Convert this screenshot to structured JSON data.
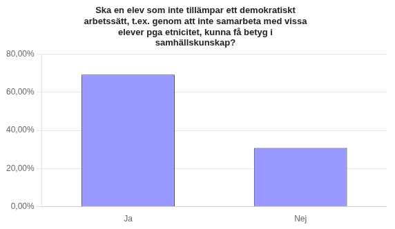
{
  "chart_data": {
    "type": "bar",
    "title": "Ska en elev som inte tillämpar ett demokratiskt\narbetssätt, t.ex. genom att inte samarbeta med vissa\nelever pga etnicitet, kunna få betyg i\nsamhällskunskap?",
    "categories": [
      "Ja",
      "Nej"
    ],
    "values": [
      0.6923,
      0.3077
    ],
    "color": "#9999FF",
    "ylim": [
      0,
      0.8
    ],
    "yticks": [
      {
        "value": 0.0,
        "label": "0,00%"
      },
      {
        "value": 0.2,
        "label": "20,00%"
      },
      {
        "value": 0.4,
        "label": "40,00%"
      },
      {
        "value": 0.6,
        "label": "60,00%"
      },
      {
        "value": 0.8,
        "label": "80,00%"
      }
    ],
    "grid": true
  }
}
